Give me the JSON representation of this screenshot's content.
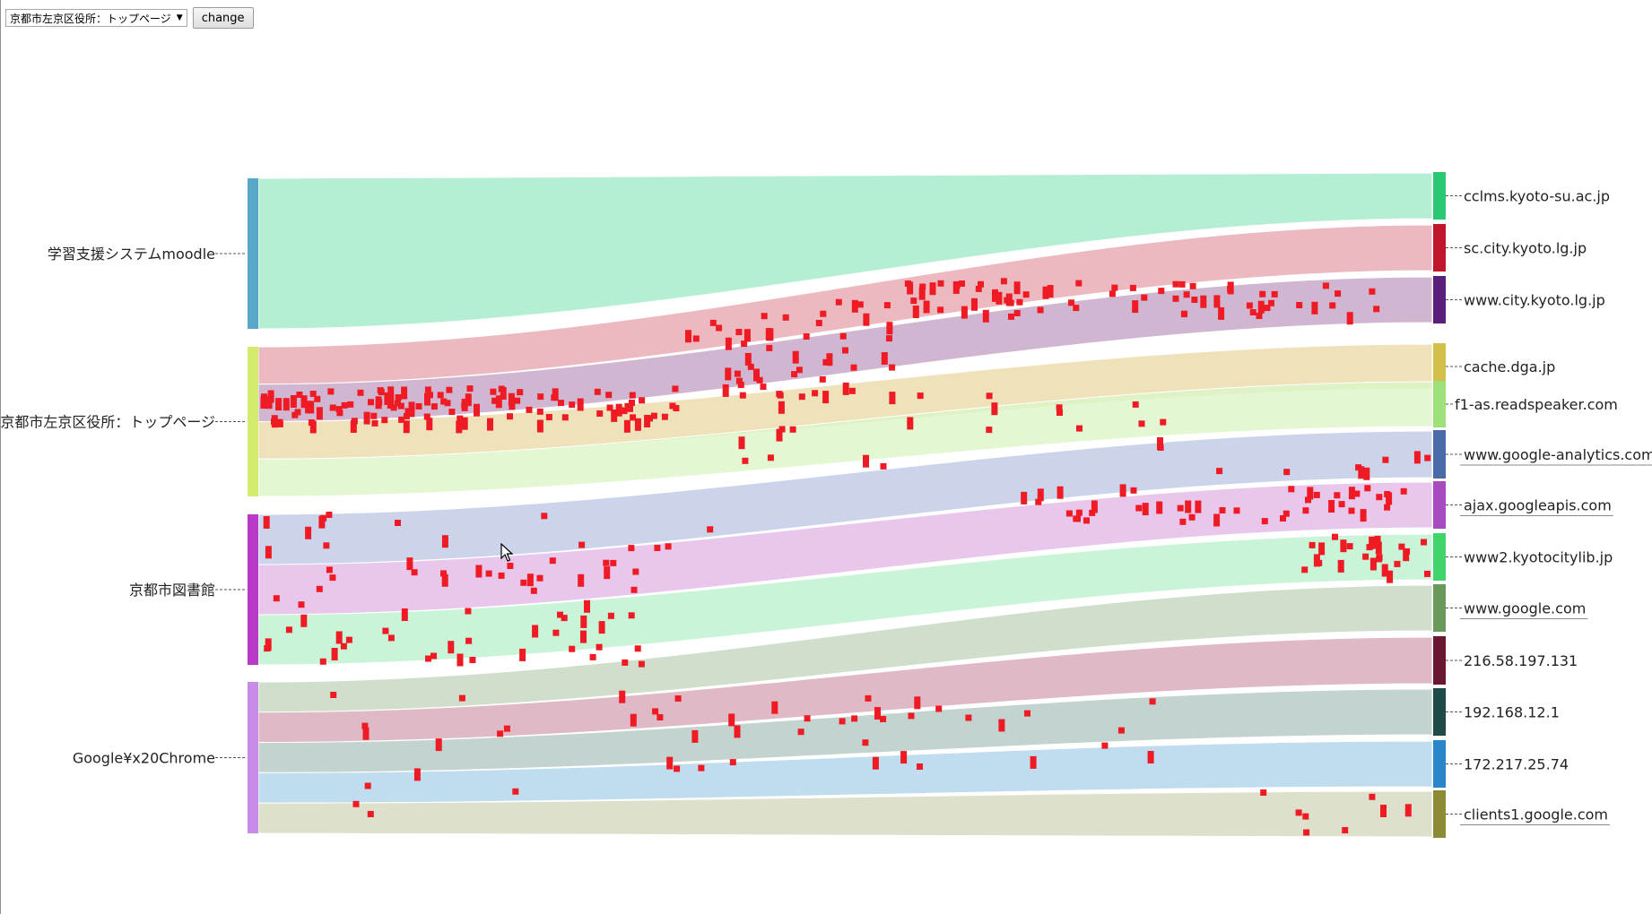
{
  "toolbar": {
    "selected_option": "京都市左京区役所：トップページ",
    "change_button_label": "change"
  },
  "cursor": {
    "icon": "mouse-pointer-icon"
  },
  "sources": [
    {
      "id": "moodle",
      "label": "学習支援システムmoodle",
      "color": "#5aa8c9"
    },
    {
      "id": "sakyo",
      "label": "京都市左京区役所：トップページ",
      "color": "#d4ec6e"
    },
    {
      "id": "library",
      "label": "京都市図書館",
      "color": "#b83ac6"
    },
    {
      "id": "chrome",
      "label": "Google¥x20Chrome",
      "color": "#c98ae8"
    }
  ],
  "targets": [
    {
      "id": "cclms",
      "label": "cclms.kyoto-su.ac.jp",
      "color": "#2bc873"
    },
    {
      "id": "sccity",
      "label": "sc.city.kyoto.lg.jp",
      "color": "#c0162c"
    },
    {
      "id": "wwwcity",
      "label": "www.city.kyoto.lg.jp",
      "color": "#5a1f7a"
    },
    {
      "id": "cache",
      "label": "cache.dga.jp",
      "color": "#d3c04a"
    },
    {
      "id": "f1",
      "label": "f1-as.readspeaker.com",
      "color": "#9ee079"
    },
    {
      "id": "analytics",
      "label": "www.google-analytics.com",
      "color": "#4a6aa8"
    },
    {
      "id": "ajax",
      "label": "ajax.googleapis.com",
      "color": "#a84ac0"
    },
    {
      "id": "www2",
      "label": "www2.kyotocitylib.jp",
      "color": "#41d46a"
    },
    {
      "id": "google",
      "label": "www.google.com",
      "color": "#6a9a5a"
    },
    {
      "id": "ip216",
      "label": "216.58.197.131",
      "color": "#6a1730"
    },
    {
      "id": "ip192",
      "label": "192.168.12.1",
      "color": "#1f4a45"
    },
    {
      "id": "ip172",
      "label": "172.217.25.74",
      "color": "#2a86c8"
    },
    {
      "id": "clients1",
      "label": "clients1.google.com",
      "color": "#8c8a35"
    }
  ],
  "links": [
    {
      "source": "moodle",
      "target": "cclms",
      "color": "#a5ecc9"
    },
    {
      "source": "sakyo",
      "target": "sccity",
      "color": "#e8a9b2"
    },
    {
      "source": "sakyo",
      "target": "wwwcity",
      "color": "#c7a6c7"
    },
    {
      "source": "sakyo",
      "target": "cache",
      "color": "#ecdcab"
    },
    {
      "source": "sakyo",
      "target": "f1",
      "color": "#dcf5c8"
    },
    {
      "source": "library",
      "target": "analytics",
      "color": "#c0cbe6"
    },
    {
      "source": "library",
      "target": "ajax",
      "color": "#e4bbe8"
    },
    {
      "source": "library",
      "target": "www2",
      "color": "#bdf1d0"
    },
    {
      "source": "chrome",
      "target": "google",
      "color": "#c6d8c0"
    },
    {
      "source": "chrome",
      "target": "ip216",
      "color": "#d8aab8"
    },
    {
      "source": "chrome",
      "target": "ip192",
      "color": "#b6c9c6"
    },
    {
      "source": "chrome",
      "target": "ip172",
      "color": "#b1d5ea"
    },
    {
      "source": "chrome",
      "target": "clients1",
      "color": "#d6d9bf"
    }
  ],
  "particle_color": "#ee1b24"
}
